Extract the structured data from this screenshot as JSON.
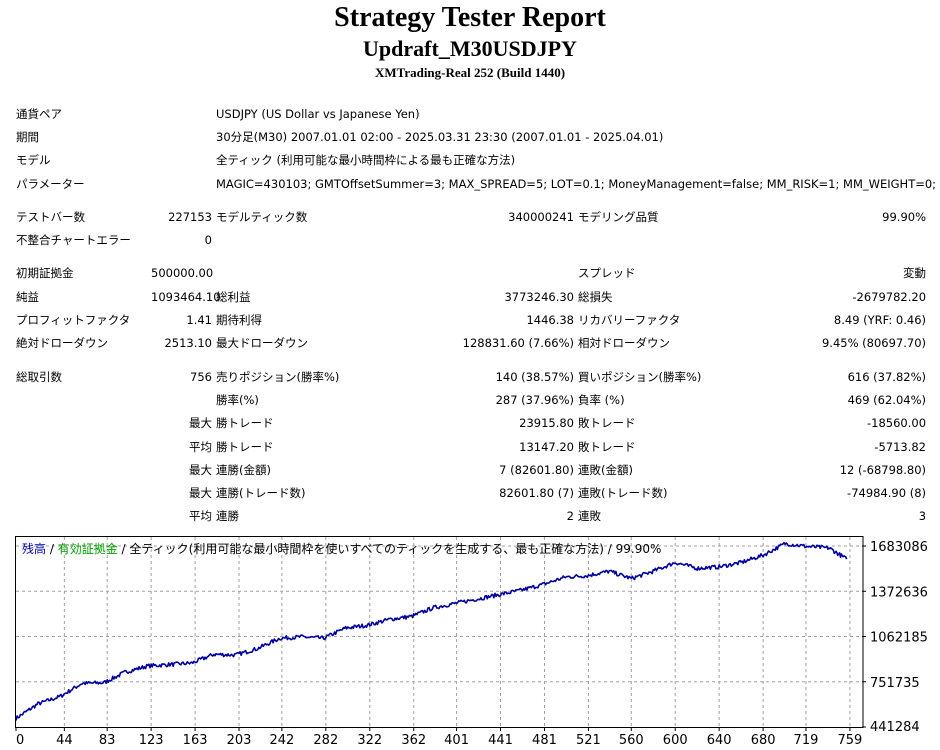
{
  "header": {
    "title": "Strategy Tester Report",
    "subtitle": "Updraft_M30USDJPY",
    "server": "XMTrading-Real 252 (Build 1440)"
  },
  "info": {
    "symbol_label": "通貨ペア",
    "symbol_value": "USDJPY (US Dollar vs Japanese Yen)",
    "period_label": "期間",
    "period_value": "30分足(M30) 2007.01.01 02:00 - 2025.03.31 23:30 (2007.01.01 - 2025.04.01)",
    "model_label": "モデル",
    "model_value": "全ティック (利用可能な最小時間枠による最も正確な方法)",
    "params_label": "パラメーター",
    "params_value": "MAGIC=430103; GMTOffsetSummer=3; MAX_SPREAD=5; LOT=0.1; MoneyManagement=false; MM_RISK=1; MM_WEIGHT=0;"
  },
  "stats": {
    "bars_label": "テストバー数",
    "bars_value": "227153",
    "ticks_label": "モデルティック数",
    "ticks_value": "340000241",
    "quality_label": "モデリング品質",
    "quality_value": "99.90%",
    "errors_label": "不整合チャートエラー",
    "errors_value": "0",
    "deposit_label": "初期証拠金",
    "deposit_value": "500000.00",
    "spread_label": "スプレッド",
    "spread_value": "変動",
    "netprofit_label": "純益",
    "netprofit_value": "1093464.10",
    "grossprofit_label": "総利益",
    "grossprofit_value": "3773246.30",
    "grossloss_label": "総損失",
    "grossloss_value": "-2679782.20",
    "pf_label": "プロフィットファクタ",
    "pf_value": "1.41",
    "expected_label": "期待利得",
    "expected_value": "1446.38",
    "recovery_label": "リカバリーファクタ",
    "recovery_value": "8.49 (YRF: 0.46)",
    "absdd_label": "絶対ドローダウン",
    "absdd_value": "2513.10",
    "maxdd_label": "最大ドローダウン",
    "maxdd_value": "128831.60 (7.66%)",
    "reldd_label": "相対ドローダウン",
    "reldd_value": "9.45% (80697.70)",
    "trades_label": "総取引数",
    "trades_value": "756",
    "short_label": "売りポジション(勝率%)",
    "short_value": "140 (38.57%)",
    "long_label": "買いポジション(勝率%)",
    "long_value": "616 (37.82%)",
    "winrate_label": "勝率(%)",
    "winrate_value": "287 (37.96%)",
    "lossrate_label": "負率 (%)",
    "lossrate_value": "469 (62.04%)",
    "max_label": "最大",
    "avg_label": "平均",
    "largest_win_label": "勝トレード",
    "largest_win_value": "23915.80",
    "largest_loss_label": "敗トレード",
    "largest_loss_value": "-18560.00",
    "avg_win_label": "勝トレード",
    "avg_win_value": "13147.20",
    "avg_loss_label": "敗トレード",
    "avg_loss_value": "-5713.82",
    "max_consec_wins_label": "連勝(金額)",
    "max_consec_wins_value": "7 (82601.80)",
    "max_consec_losses_label": "連敗(金額)",
    "max_consec_losses_value": "12 (-68798.80)",
    "max_consec_profit_label": "連勝(トレード数)",
    "max_consec_profit_value": "82601.80 (7)",
    "max_consec_loss_label": "連敗(トレード数)",
    "max_consec_loss_value": "-74984.90 (8)",
    "avg_consec_wins_label": "連勝",
    "avg_consec_wins_value": "2",
    "avg_consec_losses_label": "連敗",
    "avg_consec_losses_value": "3"
  },
  "chart_data": {
    "type": "line",
    "legend_balance": "残高",
    "legend_sep1": " / ",
    "legend_equity": "有効証拠金",
    "legend_sep2": " / ",
    "legend_desc": "全ティック(利用可能な最小時間枠を使いすべてのティックを生成する、最も正確な方法) / 99.90%",
    "colors": {
      "balance": "#0000a0",
      "equity": "#00a000",
      "grid": "#a0a0a0"
    },
    "xlim": [
      0,
      770
    ],
    "ylim": [
      441284,
      1745000
    ],
    "x_ticks": [
      0,
      44,
      83,
      123,
      163,
      203,
      242,
      282,
      322,
      362,
      401,
      441,
      481,
      521,
      560,
      600,
      640,
      680,
      719,
      759
    ],
    "y_ticks": [
      441284,
      751735,
      1062185,
      1372636,
      1683086
    ],
    "grid": true,
    "series": [
      {
        "x": [
          0,
          20,
          40,
          60,
          80,
          100,
          120,
          140,
          160,
          180,
          200,
          220,
          240,
          260,
          280,
          300,
          320,
          340,
          360,
          380,
          400,
          420,
          440,
          460,
          480,
          500,
          520,
          540,
          560,
          580,
          600,
          620,
          640,
          660,
          680,
          700,
          720,
          740,
          756
        ],
        "values": [
          500000,
          600000,
          650000,
          740000,
          745000,
          820000,
          860000,
          870000,
          880000,
          940000,
          935000,
          980000,
          1050000,
          1060000,
          1050000,
          1120000,
          1140000,
          1180000,
          1200000,
          1260000,
          1290000,
          1320000,
          1350000,
          1380000,
          1420000,
          1470000,
          1480000,
          1510000,
          1460000,
          1510000,
          1570000,
          1530000,
          1540000,
          1570000,
          1620000,
          1700000,
          1680000,
          1670000,
          1593464
        ]
      }
    ]
  }
}
